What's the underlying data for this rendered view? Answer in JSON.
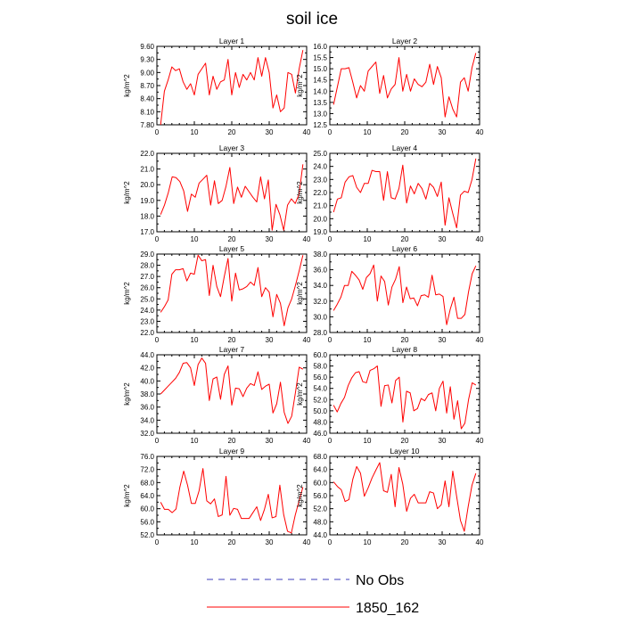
{
  "chart_data": {
    "type": "line",
    "title": "soil ice",
    "panels": [
      {
        "subtitle": "Layer 1",
        "ylabel": "kg/m^2",
        "ylim": [
          7.8,
          9.9
        ],
        "yticks": [
          "7.80",
          "8.10",
          "8.40",
          "8.70",
          "9.00",
          "9.30",
          "9.60"
        ],
        "xlim": [
          0,
          40
        ],
        "xticks": [
          "0",
          "10",
          "20",
          "30",
          "40"
        ],
        "series": [
          {
            "name": "1850_162",
            "values": [
              7.8,
              8.7,
              9.0,
              9.35,
              9.25,
              9.3,
              8.95,
              8.75,
              8.9,
              8.6,
              9.15,
              9.3,
              9.45,
              8.6,
              9.1,
              8.75,
              8.95,
              9.0,
              9.55,
              8.6,
              9.2,
              8.8,
              9.15,
              9.0,
              9.2,
              9.0,
              9.6,
              9.1,
              9.6,
              9.2,
              8.25,
              8.6,
              8.15,
              8.25,
              9.2,
              9.15,
              8.65,
              9.3,
              9.8
            ]
          }
        ]
      },
      {
        "subtitle": "Layer 2",
        "ylabel": "kg/m^2",
        "ylim": [
          12.5,
          16.0
        ],
        "yticks": [
          "12.5",
          "13.0",
          "13.5",
          "14.0",
          "14.5",
          "15.0",
          "15.5",
          "16.0"
        ],
        "xlim": [
          0,
          40
        ],
        "xticks": [
          "0",
          "10",
          "20",
          "30",
          "40"
        ],
        "series": [
          {
            "name": "1850_162",
            "values": [
              13.4,
              14.2,
              15.0,
              15.0,
              15.05,
              14.4,
              13.7,
              14.25,
              14.0,
              14.9,
              15.1,
              15.3,
              13.9,
              14.7,
              13.7,
              14.1,
              14.3,
              15.5,
              14.0,
              14.75,
              14.0,
              14.55,
              14.3,
              14.2,
              14.4,
              15.2,
              14.3,
              15.1,
              14.6,
              12.85,
              13.75,
              13.2,
              12.85,
              14.4,
              14.6,
              14.0,
              15.05,
              15.7
            ]
          }
        ]
      },
      {
        "subtitle": "Layer 3",
        "ylabel": "kg/m^2",
        "ylim": [
          17.0,
          22.0
        ],
        "yticks": [
          "17.0",
          "18.0",
          "19.0",
          "20.0",
          "21.0",
          "22.0"
        ],
        "xlim": [
          0,
          40
        ],
        "xticks": [
          "0",
          "10",
          "20",
          "30",
          "40"
        ],
        "series": [
          {
            "name": "1850_162",
            "values": [
              18.1,
              18.7,
              19.5,
              20.5,
              20.45,
              20.2,
              19.6,
              18.3,
              19.4,
              19.2,
              20.1,
              20.35,
              20.6,
              18.7,
              20.25,
              18.8,
              19.0,
              19.9,
              21.1,
              18.8,
              19.85,
              19.2,
              19.9,
              19.55,
              19.2,
              18.9,
              20.5,
              19.1,
              20.3,
              17.1,
              18.75,
              18.1,
              17.1,
              18.7,
              19.1,
              18.8,
              19.4,
              21.3
            ]
          }
        ]
      },
      {
        "subtitle": "Layer 4",
        "ylabel": "kg/m^2",
        "ylim": [
          19.0,
          25.0
        ],
        "yticks": [
          "19.0",
          "20.0",
          "21.0",
          "22.0",
          "23.0",
          "24.0",
          "25.0"
        ],
        "xlim": [
          0,
          40
        ],
        "xticks": [
          "0",
          "10",
          "20",
          "30",
          "40"
        ],
        "series": [
          {
            "name": "1850_162",
            "values": [
              20.5,
              21.5,
              21.6,
              22.8,
              23.2,
              23.3,
              22.4,
              22.0,
              22.7,
              22.7,
              23.7,
              23.6,
              23.6,
              21.4,
              23.6,
              21.6,
              21.5,
              22.3,
              24.1,
              21.2,
              22.5,
              21.9,
              22.7,
              22.3,
              21.5,
              22.7,
              22.4,
              21.7,
              22.8,
              19.5,
              21.6,
              20.4,
              19.3,
              21.8,
              22.1,
              22.0,
              23.0,
              24.6
            ]
          }
        ]
      },
      {
        "subtitle": "Layer 5",
        "ylabel": "kg/m^2",
        "ylim": [
          22.0,
          29.0
        ],
        "yticks": [
          "22.0",
          "23.0",
          "24.0",
          "25.0",
          "26.0",
          "27.0",
          "28.0",
          "29.0"
        ],
        "xlim": [
          0,
          40
        ],
        "xticks": [
          "0",
          "10",
          "20",
          "30",
          "40"
        ],
        "series": [
          {
            "name": "1850_162",
            "values": [
              23.8,
              24.3,
              24.9,
              27.2,
              27.6,
              27.6,
              27.7,
              26.6,
              27.3,
              27.2,
              28.9,
              28.4,
              28.5,
              25.3,
              28.0,
              26.1,
              25.2,
              27.0,
              28.6,
              24.8,
              27.3,
              25.8,
              25.9,
              26.1,
              26.5,
              26.2,
              27.8,
              25.2,
              26.0,
              25.6,
              23.4,
              25.4,
              24.6,
              22.6,
              24.2,
              25.0,
              26.2,
              27.5,
              28.9
            ]
          }
        ]
      },
      {
        "subtitle": "Layer 6",
        "ylabel": "kg/m^2",
        "ylim": [
          28.0,
          38.0
        ],
        "yticks": [
          "28.0",
          "30.0",
          "32.0",
          "34.0",
          "36.0",
          "38.0"
        ],
        "xlim": [
          0,
          40
        ],
        "xticks": [
          "0",
          "10",
          "20",
          "30",
          "40"
        ],
        "series": [
          {
            "name": "1850_162",
            "values": [
              30.8,
              31.6,
              32.5,
              34.0,
              34.0,
              35.8,
              35.3,
              34.7,
              33.5,
              35.0,
              35.5,
              36.6,
              32.0,
              35.2,
              34.5,
              31.5,
              33.8,
              34.8,
              36.4,
              31.8,
              33.8,
              32.3,
              32.4,
              31.4,
              32.7,
              32.8,
              32.5,
              35.3,
              32.8,
              32.9,
              32.6,
              29.0,
              31.0,
              32.5,
              29.8,
              29.8,
              30.3,
              33.2,
              35.5,
              36.5
            ]
          }
        ]
      },
      {
        "subtitle": "Layer 7",
        "ylabel": "kg/m^2",
        "ylim": [
          32.0,
          44.0
        ],
        "yticks": [
          "32.0",
          "34.0",
          "36.0",
          "38.0",
          "40.0",
          "42.0",
          "44.0"
        ],
        "xlim": [
          0,
          40
        ],
        "xticks": [
          "0",
          "10",
          "20",
          "30",
          "40"
        ],
        "series": [
          {
            "name": "1850_162",
            "values": [
              38.0,
              38.6,
              39.2,
              39.8,
              40.4,
              41.3,
              42.7,
              42.8,
              42.0,
              39.3,
              42.5,
              43.5,
              42.7,
              37.0,
              40.3,
              40.6,
              37.2,
              41.0,
              42.3,
              36.3,
              38.9,
              38.8,
              37.6,
              38.9,
              39.6,
              39.3,
              41.4,
              38.7,
              39.2,
              39.5,
              35.1,
              36.5,
              39.8,
              35.2,
              33.5,
              34.6,
              38.2,
              42.1,
              41.8
            ]
          }
        ]
      },
      {
        "subtitle": "Layer 8",
        "ylabel": "kg/m^2",
        "ylim": [
          46.0,
          60.0
        ],
        "yticks": [
          "46.0",
          "48.0",
          "50.0",
          "52.0",
          "54.0",
          "56.0",
          "58.0",
          "60.0"
        ],
        "xlim": [
          0,
          40
        ],
        "xticks": [
          "0",
          "10",
          "20",
          "30",
          "40"
        ],
        "series": [
          {
            "name": "1850_162",
            "values": [
              51.0,
              49.8,
              51.3,
              52.4,
              54.5,
              55.9,
              56.8,
              57.0,
              55.2,
              55.0,
              57.2,
              57.5,
              58.0,
              50.8,
              54.5,
              54.6,
              51.4,
              55.4,
              56.0,
              48.0,
              53.5,
              53.2,
              50.0,
              50.4,
              52.2,
              51.8,
              52.9,
              53.2,
              50.0,
              54.0,
              55.3,
              49.6,
              54.3,
              48.5,
              51.8,
              46.8,
              47.8,
              52.0,
              55.0,
              54.6
            ]
          }
        ]
      },
      {
        "subtitle": "Layer 9",
        "ylabel": "kg/m^2",
        "ylim": [
          52.0,
          76.0
        ],
        "yticks": [
          "52.0",
          "56.0",
          "60.0",
          "64.0",
          "68.0",
          "72.0",
          "76.0"
        ],
        "xlim": [
          0,
          40
        ],
        "xticks": [
          "0",
          "10",
          "20",
          "30",
          "40"
        ],
        "series": [
          {
            "name": "1850_162",
            "values": [
              62.0,
              59.8,
              59.8,
              58.8,
              59.9,
              66.6,
              71.5,
              67.2,
              61.6,
              61.6,
              65.5,
              72.3,
              62.4,
              61.5,
              63.0,
              57.6,
              58.1,
              69.9,
              58.0,
              60.1,
              59.8,
              57.0,
              57.0,
              57.0,
              58.8,
              60.6,
              56.4,
              59.8,
              64.4,
              57.2,
              57.6,
              67.2,
              58.2,
              53.1,
              52.6,
              58.0,
              62.4,
              66.6
            ]
          }
        ]
      },
      {
        "subtitle": "Layer 10",
        "ylabel": "kg/m^2",
        "ylim": [
          44.0,
          68.0
        ],
        "yticks": [
          "44.0",
          "48.0",
          "52.0",
          "56.0",
          "60.0",
          "64.0",
          "68.0"
        ],
        "xlim": [
          0,
          40
        ],
        "xticks": [
          "0",
          "10",
          "20",
          "30",
          "40"
        ],
        "series": [
          {
            "name": "1850_162",
            "values": [
              60.2,
              58.8,
              57.8,
              54.2,
              54.8,
              61.0,
              64.9,
              62.9,
              55.8,
              58.4,
              61.4,
              63.8,
              66.1,
              57.5,
              57.0,
              62.5,
              52.6,
              64.6,
              59.5,
              51.2,
              55.2,
              56.4,
              53.8,
              53.8,
              53.8,
              57.2,
              56.8,
              52.0,
              53.2,
              60.5,
              52.6,
              63.5,
              55.8,
              48.4,
              45.1,
              52.6,
              59.2,
              62.8
            ]
          }
        ]
      }
    ],
    "legend": [
      {
        "label": "No Obs",
        "color": "#3d3dbb",
        "style": "dashed"
      },
      {
        "label": "1850_162",
        "color": "#ff0000",
        "style": "solid"
      }
    ],
    "line_color": "#ff0000",
    "grid": false,
    "legend_position": "bottom"
  }
}
